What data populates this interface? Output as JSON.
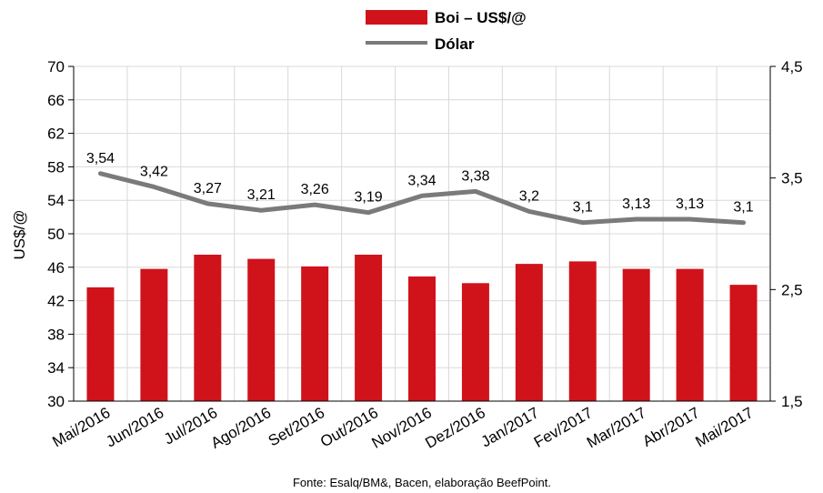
{
  "chart_data": {
    "type": "bar",
    "categories": [
      "Mai/2016",
      "Jun/2016",
      "Jul/2016",
      "Ago/2016",
      "Set/2016",
      "Out/2016",
      "Nov/2016",
      "Dez/2016",
      "Jan/2017",
      "Fev/2017",
      "Mar/2017",
      "Abr/2017",
      "Mai/2017"
    ],
    "series": [
      {
        "name": "Boi – US$/@",
        "type": "bar",
        "axis": "left",
        "color": "#d0131a",
        "values": [
          43.6,
          45.8,
          47.5,
          47.0,
          46.1,
          47.5,
          44.9,
          44.1,
          46.4,
          46.7,
          45.8,
          45.8,
          43.9
        ]
      },
      {
        "name": "Dólar",
        "type": "line",
        "axis": "right",
        "color": "#7a7a7a",
        "values": [
          3.54,
          3.42,
          3.27,
          3.21,
          3.26,
          3.19,
          3.34,
          3.38,
          3.2,
          3.1,
          3.13,
          3.13,
          3.1
        ],
        "labels": [
          "3,54",
          "3,42",
          "3,27",
          "3,21",
          "3,26",
          "3,19",
          "3,34",
          "3,38",
          "3,2",
          "3,1",
          "3,13",
          "3,13",
          "3,1"
        ]
      }
    ],
    "ylabel": "US$/@",
    "ylim": [
      30,
      70
    ],
    "y_ticks": [
      "30",
      "34",
      "38",
      "42",
      "46",
      "50",
      "54",
      "58",
      "62",
      "66",
      "70"
    ],
    "y2lim": [
      1.5,
      4.5
    ],
    "y2_ticks": [
      "1,5",
      "2,5",
      "3,5",
      "4,5"
    ],
    "grid": true,
    "legend": "top-center",
    "source": "Fonte: Esalq/BM&, Bacen, elaboração BeefPoint."
  }
}
